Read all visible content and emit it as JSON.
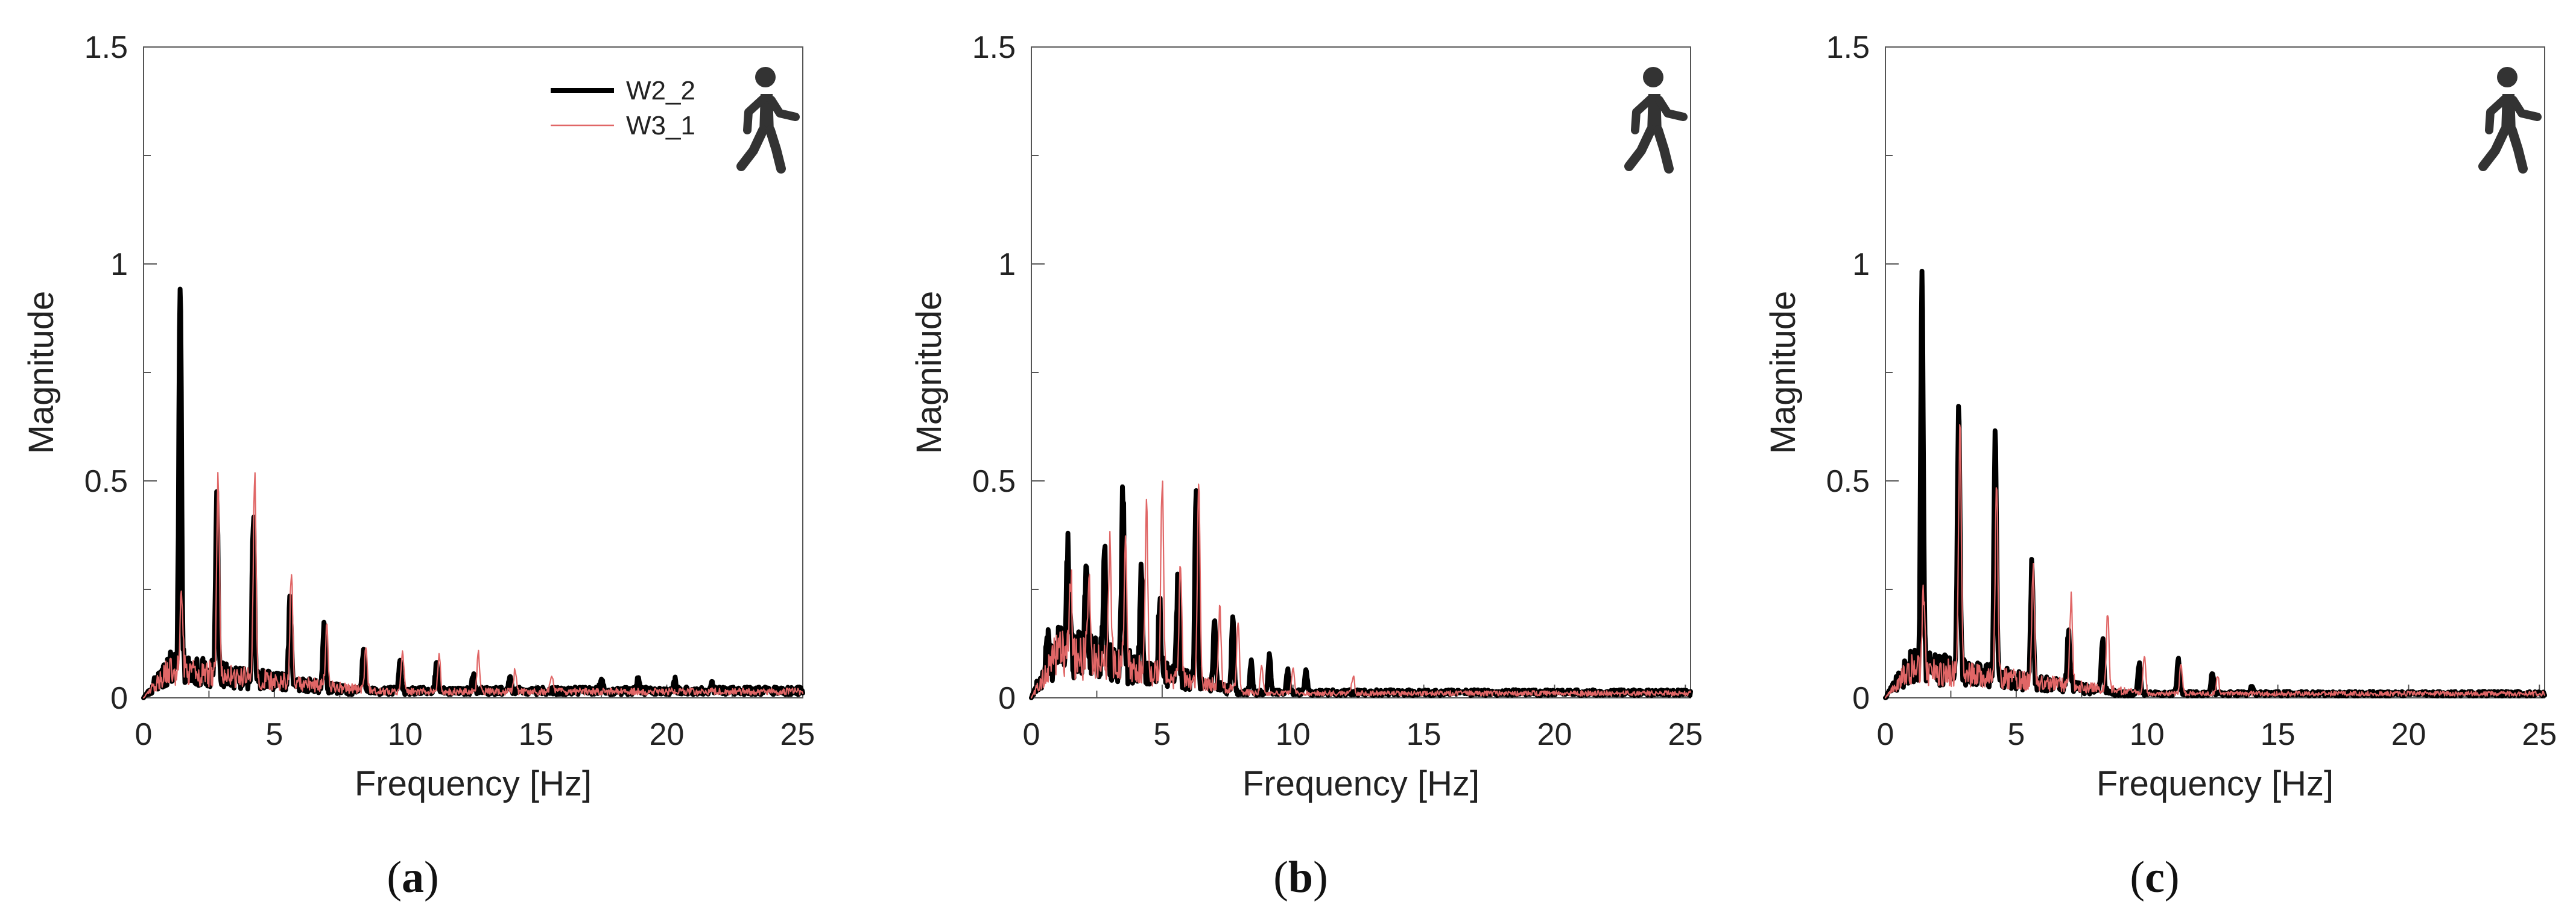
{
  "figure": {
    "panels": [
      "a",
      "b",
      "c"
    ]
  },
  "chart_data": [
    {
      "type": "line",
      "panel": "a",
      "caption": "(a)",
      "xlabel": "Frequency  [Hz]",
      "ylabel": "Magnitude",
      "xlim": [
        0,
        25
      ],
      "ylim": [
        0,
        1.5
      ],
      "xticks": [
        "0",
        "5",
        "10",
        "15",
        "20",
        "25"
      ],
      "yticks": [
        "0",
        "0.5",
        "1",
        "1.5"
      ],
      "grid": false,
      "legend": "top-right",
      "icon": "walking-person-icon",
      "series": [
        {
          "name": "W2_2",
          "color": "#000000",
          "peaks": [
            [
              1.4,
              0.89
            ],
            [
              2.8,
              0.42
            ],
            [
              4.2,
              0.37
            ],
            [
              5.6,
              0.2
            ],
            [
              6.9,
              0.15
            ],
            [
              8.4,
              0.09
            ],
            [
              9.8,
              0.07
            ],
            [
              11.2,
              0.06
            ],
            [
              12.6,
              0.04
            ],
            [
              14.0,
              0.03
            ],
            [
              17.5,
              0.03
            ],
            [
              18.9,
              0.03
            ],
            [
              20.3,
              0.025
            ],
            [
              21.7,
              0.02
            ]
          ],
          "noise": 0.075,
          "noise_extent": 8,
          "tail": 0.02
        },
        {
          "name": "W3_1",
          "color": "#e06666",
          "peaks": [
            [
              1.45,
              0.2
            ],
            [
              2.85,
              0.45
            ],
            [
              4.25,
              0.48
            ],
            [
              5.65,
              0.26
            ],
            [
              7.0,
              0.14
            ],
            [
              8.5,
              0.1
            ],
            [
              9.9,
              0.1
            ],
            [
              11.3,
              0.09
            ],
            [
              12.8,
              0.09
            ],
            [
              14.2,
              0.05
            ],
            [
              15.6,
              0.04
            ]
          ],
          "noise": 0.07,
          "noise_extent": 9,
          "tail": 0.018
        }
      ]
    },
    {
      "type": "line",
      "panel": "b",
      "caption": "(b)",
      "xlabel": "Frequency  [Hz]",
      "ylabel": "Magnitude",
      "xlim": [
        0,
        25
      ],
      "ylim": [
        0,
        1.5
      ],
      "xticks": [
        "0",
        "5",
        "10",
        "15",
        "20",
        "25"
      ],
      "yticks": [
        "0",
        "0.5",
        "1",
        "1.5"
      ],
      "grid": false,
      "icon": "walking-person-icon",
      "series": [
        {
          "name": "W2_2",
          "color": "#000000",
          "peaks": [
            [
              0.6,
              0.06
            ],
            [
              1.4,
              0.26
            ],
            [
              2.1,
              0.25
            ],
            [
              2.8,
              0.25
            ],
            [
              3.5,
              0.4
            ],
            [
              4.2,
              0.25
            ],
            [
              4.9,
              0.17
            ],
            [
              5.6,
              0.23
            ],
            [
              6.3,
              0.45
            ],
            [
              7.0,
              0.15
            ],
            [
              7.7,
              0.17
            ],
            [
              8.4,
              0.07
            ],
            [
              9.1,
              0.09
            ],
            [
              9.8,
              0.05
            ],
            [
              10.5,
              0.05
            ]
          ],
          "noise": 0.14,
          "noise_extent": 8,
          "tail": 0.015
        },
        {
          "name": "W3_1",
          "color": "#e06666",
          "peaks": [
            [
              1.5,
              0.2
            ],
            [
              2.2,
              0.22
            ],
            [
              3.0,
              0.3
            ],
            [
              3.6,
              0.32
            ],
            [
              4.4,
              0.38
            ],
            [
              5.0,
              0.45
            ],
            [
              5.7,
              0.28
            ],
            [
              6.4,
              0.47
            ],
            [
              7.2,
              0.18
            ],
            [
              7.9,
              0.16
            ],
            [
              8.8,
              0.07
            ],
            [
              10.0,
              0.06
            ],
            [
              12.3,
              0.04
            ]
          ],
          "noise": 0.13,
          "noise_extent": 8.5,
          "tail": 0.013
        }
      ]
    },
    {
      "type": "line",
      "panel": "c",
      "caption": "(c)",
      "xlabel": "Frequency  [Hz]",
      "ylabel": "Magnitude",
      "xlim": [
        0,
        25
      ],
      "ylim": [
        0,
        1.5
      ],
      "xticks": [
        "0",
        "5",
        "10",
        "15",
        "20",
        "25"
      ],
      "yticks": [
        "0",
        "0.5",
        "1",
        "1.5"
      ],
      "grid": false,
      "icon": "walking-person-icon",
      "series": [
        {
          "name": "W2_2",
          "color": "#000000",
          "peaks": [
            [
              1.4,
              0.88
            ],
            [
              2.8,
              0.61
            ],
            [
              4.2,
              0.56
            ],
            [
              5.6,
              0.27
            ],
            [
              7.0,
              0.13
            ],
            [
              8.3,
              0.12
            ],
            [
              9.7,
              0.07
            ],
            [
              11.2,
              0.08
            ],
            [
              12.5,
              0.05
            ],
            [
              14.0,
              0.02
            ]
          ],
          "noise": 0.09,
          "noise_extent": 9,
          "tail": 0.012
        },
        {
          "name": "W3_1",
          "color": "#e06666",
          "peaks": [
            [
              1.45,
              0.19
            ],
            [
              2.85,
              0.57
            ],
            [
              4.25,
              0.47
            ],
            [
              5.65,
              0.26
            ],
            [
              7.1,
              0.2
            ],
            [
              8.5,
              0.18
            ],
            [
              9.9,
              0.09
            ],
            [
              11.3,
              0.07
            ],
            [
              12.7,
              0.04
            ]
          ],
          "noise": 0.08,
          "noise_extent": 10,
          "tail": 0.012
        }
      ]
    }
  ]
}
